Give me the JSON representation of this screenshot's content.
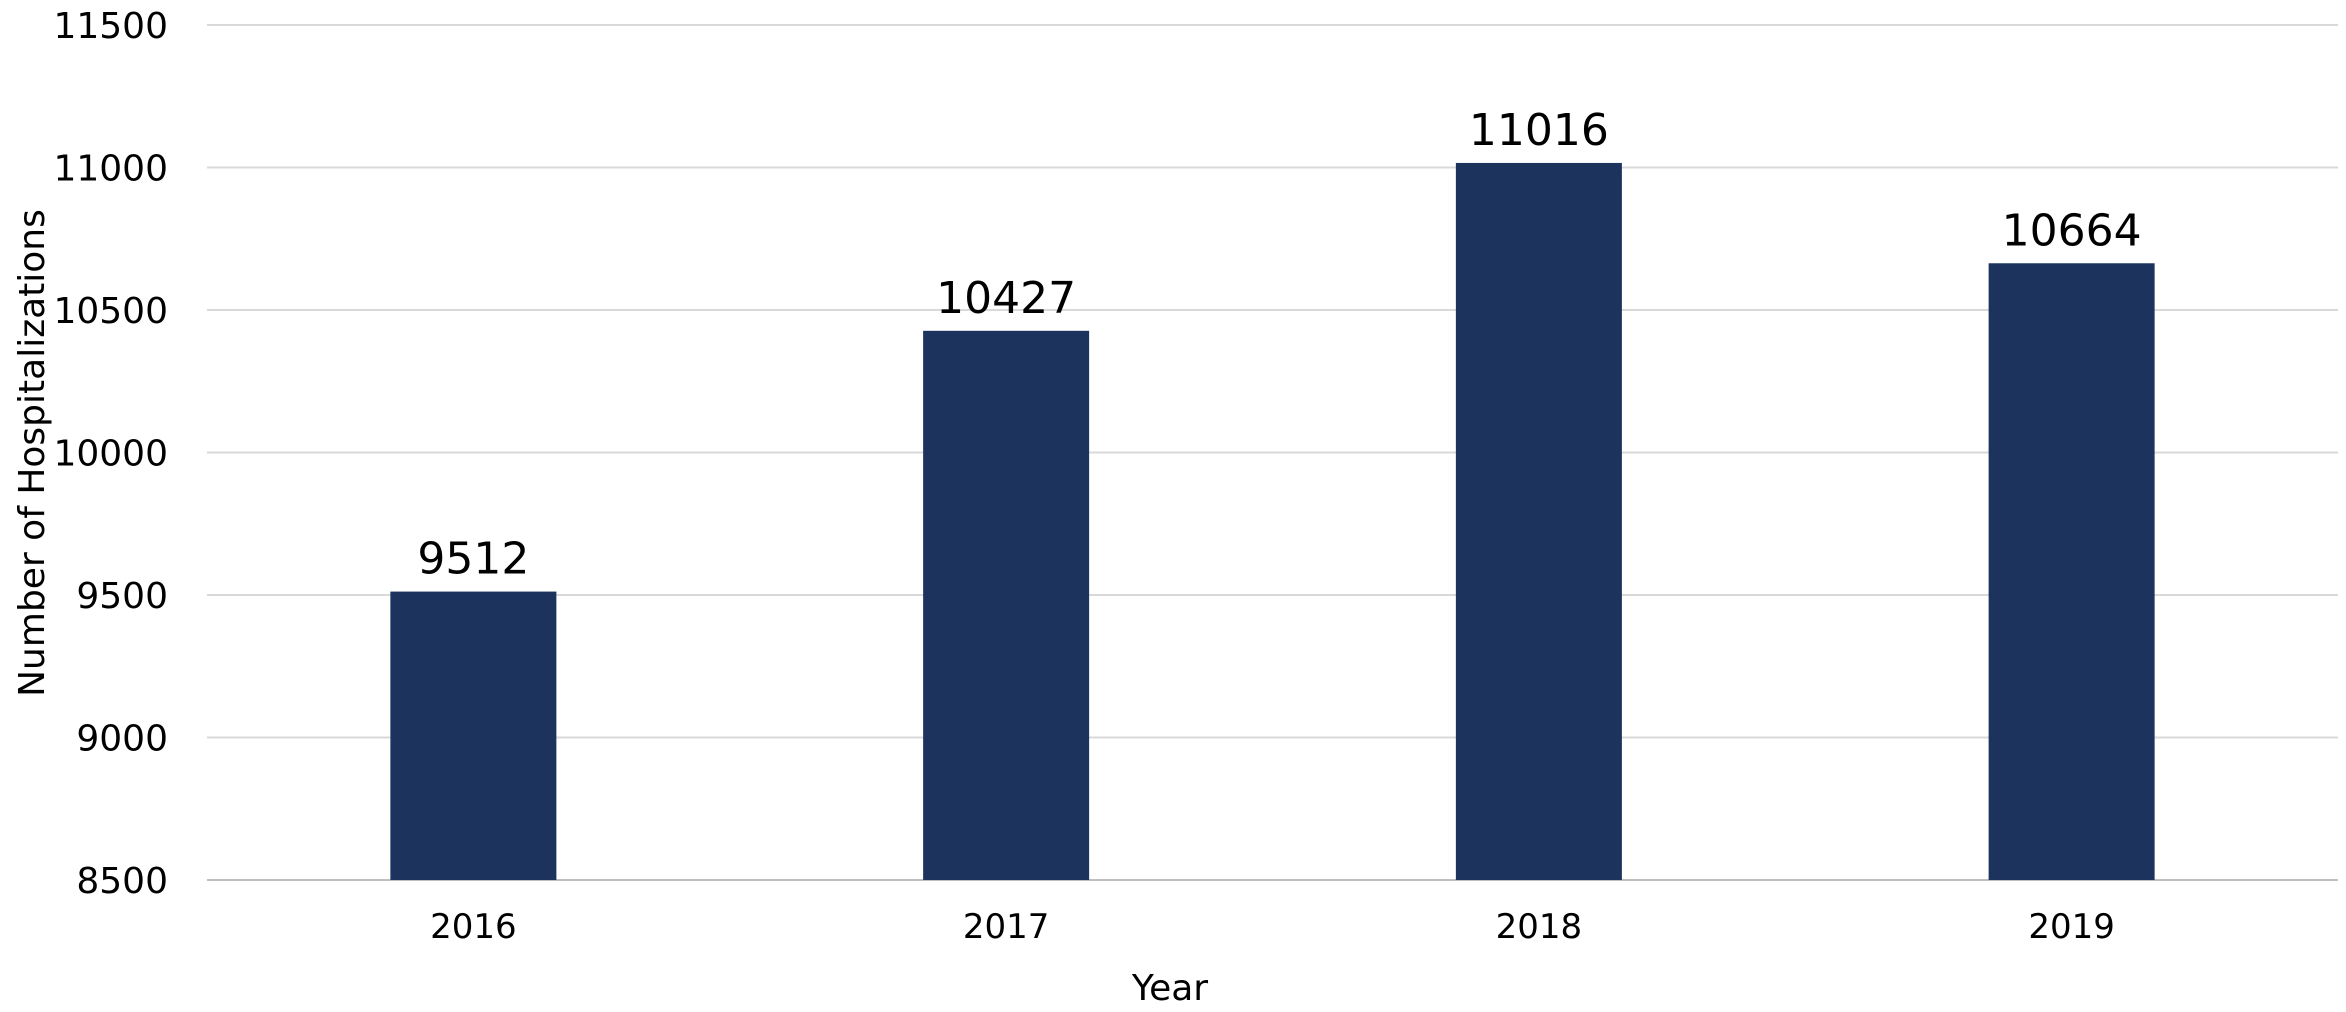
{
  "chart_data": {
    "type": "bar",
    "title": "",
    "xlabel": "Year",
    "ylabel": "Number of Hospitalizations",
    "categories": [
      "2016",
      "2017",
      "2018",
      "2019"
    ],
    "values": [
      9512,
      10427,
      11016,
      10664
    ],
    "data_labels": [
      "9512",
      "10427",
      "11016",
      "10664"
    ],
    "ylim": [
      8500,
      11500
    ],
    "yticks": [
      8500,
      9000,
      9500,
      10000,
      10500,
      11000,
      11500
    ],
    "ytick_labels": [
      "8500",
      "9000",
      "9500",
      "10000",
      "10500",
      "11000",
      "11500"
    ],
    "grid": true,
    "legend": "none",
    "bar_color": "#1c335e",
    "grid_color": "#d9d9d9"
  }
}
